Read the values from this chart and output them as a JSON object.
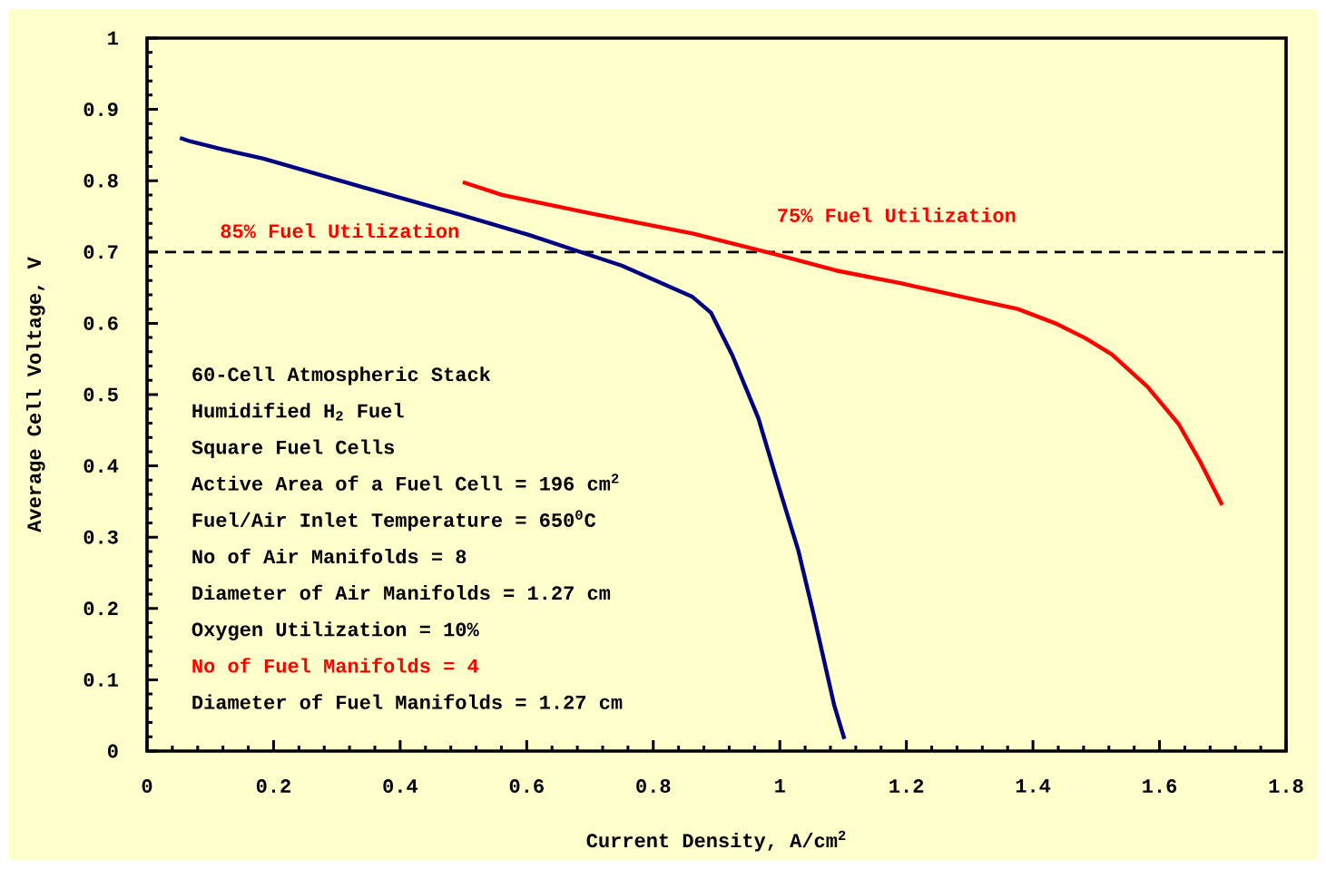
{
  "chart_data": {
    "type": "line",
    "xlabel": "Current Density, A/cm$^{2}$",
    "ylabel": "Average Cell Voltage, V",
    "xlim": [
      0,
      1.8
    ],
    "ylim": [
      0,
      1
    ],
    "xticks": [
      0,
      0.2,
      0.4,
      0.6,
      0.8,
      1,
      1.2,
      1.4,
      1.6,
      1.8
    ],
    "yticks": [
      0,
      0.1,
      0.2,
      0.3,
      0.4,
      0.5,
      0.6,
      0.7,
      0.8,
      0.9,
      1
    ],
    "marker": "none",
    "line_style": "solid",
    "series": [
      {
        "name": "85% Fuel Utilization",
        "color": "#000080",
        "x": [
          0.052,
          0.069,
          0.119,
          0.184,
          0.341,
          0.496,
          0.603,
          0.702,
          0.75,
          0.862,
          0.891,
          0.925,
          0.966,
          1.001,
          1.029,
          1.053,
          1.086,
          1.102
        ],
        "values": [
          0.86,
          0.855,
          0.844,
          0.831,
          0.791,
          0.752,
          0.724,
          0.695,
          0.681,
          0.637,
          0.615,
          0.555,
          0.467,
          0.363,
          0.282,
          0.193,
          0.064,
          0.017
        ]
      },
      {
        "name": "75% Fuel Utilization",
        "color": "#ff0000",
        "x": [
          0.499,
          0.561,
          0.702,
          0.862,
          0.996,
          1.089,
          1.192,
          1.294,
          1.376,
          1.438,
          1.483,
          1.525,
          1.581,
          1.63,
          1.663,
          1.699
        ],
        "values": [
          0.798,
          0.78,
          0.754,
          0.726,
          0.696,
          0.674,
          0.656,
          0.636,
          0.62,
          0.599,
          0.579,
          0.556,
          0.511,
          0.459,
          0.408,
          0.345
        ]
      }
    ],
    "ref_lines": [
      {
        "axis": "y",
        "value": 0.7,
        "color": "#000000",
        "line_style": "dashed"
      }
    ],
    "annotations": [
      "60-Cell Atmospheric Stack",
      "Humidified H$_{2}$ Fuel",
      "Square Fuel Cells",
      "Active Area of a Fuel Cell = 196 cm$^{2}$",
      "Fuel/Air Inlet Temperature = 650$^{0}$C",
      "No of Air Manifolds = 8",
      "Diameter of Air Manifolds = 1.27 cm",
      "Oxygen Utilization = 10%",
      "No of Fuel Manifolds = 4",
      "Diameter of Fuel Manifolds = 1.27 cm"
    ]
  }
}
